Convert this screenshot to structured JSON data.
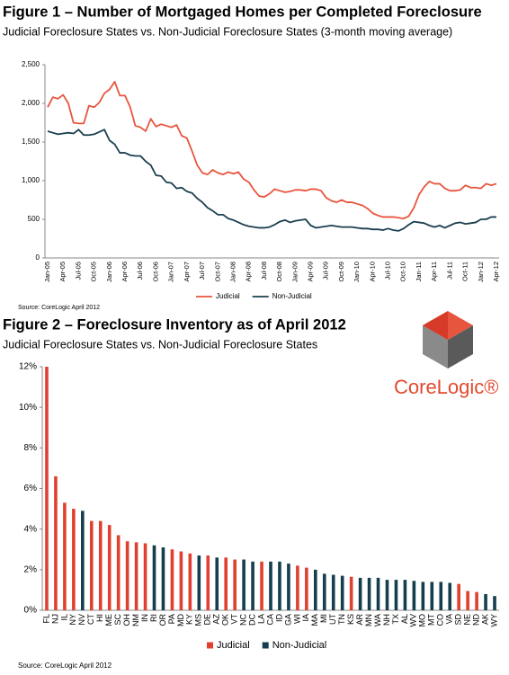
{
  "brand": "CoreLogic®",
  "chart_data": [
    {
      "type": "line",
      "title": "Figure 1 – Number of Mortgaged Homes per Completed Foreclosure",
      "subtitle": "Judicial Foreclosure States vs. Non-Judicial Foreclosure States (3-month moving average)",
      "source": "Source: CoreLogic April 2012",
      "categories": [
        "Jan-05",
        null,
        null,
        "Apr-05",
        null,
        null,
        "Jul-05",
        null,
        null,
        "Oct-05",
        null,
        null,
        "Jan-06",
        null,
        null,
        "Apr-06",
        null,
        null,
        "Jul-06",
        null,
        null,
        "Oct-06",
        null,
        null,
        "Jan-07",
        null,
        null,
        "Apr-07",
        null,
        null,
        "Jul-07",
        null,
        null,
        "Oct-07",
        null,
        null,
        "Jan-08",
        null,
        null,
        "Apr-08",
        null,
        null,
        "Jul-08",
        null,
        null,
        "Oct-08",
        null,
        null,
        "Jan-09",
        null,
        null,
        "Apr-09",
        null,
        null,
        "Jul-09",
        null,
        null,
        "Oct-09",
        null,
        null,
        "Jan-10",
        null,
        null,
        "Apr-10",
        null,
        null,
        "Jul-10",
        null,
        null,
        "Oct-10",
        null,
        null,
        "Jan-11",
        null,
        null,
        "Apr-11",
        null,
        null,
        "Jul-11",
        null,
        null,
        "Oct-11",
        null,
        null,
        "Jan-12",
        null,
        null,
        "Apr-12"
      ],
      "series": [
        {
          "name": "Judicial",
          "color": "#e8553e",
          "values": [
            1950,
            2080,
            2060,
            2110,
            2000,
            1750,
            1740,
            1740,
            1970,
            1950,
            2010,
            2130,
            2180,
            2280,
            2100,
            2100,
            1950,
            1710,
            1690,
            1640,
            1800,
            1700,
            1730,
            1710,
            1690,
            1720,
            1580,
            1550,
            1380,
            1200,
            1100,
            1080,
            1140,
            1100,
            1080,
            1110,
            1090,
            1110,
            1020,
            980,
            880,
            800,
            790,
            830,
            890,
            870,
            850,
            860,
            880,
            880,
            870,
            890,
            890,
            870,
            780,
            740,
            720,
            750,
            720,
            720,
            700,
            680,
            640,
            580,
            550,
            530,
            530,
            530,
            520,
            510,
            540,
            650,
            820,
            920,
            990,
            960,
            960,
            900,
            870,
            870,
            880,
            940,
            910,
            910,
            900,
            960,
            940,
            960
          ]
        },
        {
          "name": "Non-Judicial",
          "color": "#1b3f4f",
          "values": [
            1640,
            1620,
            1600,
            1610,
            1620,
            1610,
            1660,
            1590,
            1590,
            1600,
            1630,
            1660,
            1520,
            1470,
            1360,
            1360,
            1330,
            1320,
            1320,
            1250,
            1200,
            1070,
            1060,
            980,
            970,
            900,
            910,
            860,
            840,
            770,
            720,
            650,
            610,
            560,
            560,
            510,
            490,
            460,
            430,
            410,
            400,
            390,
            390,
            400,
            430,
            470,
            490,
            460,
            480,
            490,
            500,
            420,
            390,
            400,
            410,
            420,
            410,
            400,
            400,
            400,
            390,
            380,
            380,
            370,
            370,
            360,
            380,
            360,
            350,
            380,
            430,
            470,
            460,
            450,
            420,
            400,
            420,
            390,
            420,
            450,
            460,
            440,
            450,
            460,
            500,
            500,
            530,
            530
          ]
        }
      ],
      "ylim": [
        0,
        2500
      ],
      "yticks": [
        0,
        500,
        {
          "value": 1000,
          "label": "1,000"
        },
        {
          "value": 1500,
          "label": "1,500"
        },
        {
          "value": 2000,
          "label": "2,000"
        },
        {
          "value": 2500,
          "label": "2,500"
        }
      ],
      "grid": false
    },
    {
      "type": "bar",
      "title": "Figure 2 – Foreclosure Inventory as of April 2012",
      "subtitle": "Judicial Foreclosure States vs. Non-Judicial Foreclosure States",
      "source": "Source: CoreLogic April 2012",
      "categories": [
        "FL",
        "NJ",
        "IL",
        "NY",
        "NV",
        "CT",
        "HI",
        "ME",
        "SC",
        "OH",
        "NM",
        "IN",
        "RI",
        "OR",
        "PA",
        "MD",
        "KY",
        "MS",
        "DE",
        "AZ",
        "OK",
        "VT",
        "NC",
        "DC",
        "LA",
        "CA",
        "ID",
        "GA",
        "WI",
        "IA",
        "MA",
        "MI",
        "UT",
        "TN",
        "KS",
        "AR",
        "MN",
        "WA",
        "NH",
        "TX",
        "AL",
        "WV",
        "MO",
        "MT",
        "CO",
        "VA",
        "SD",
        "NE",
        "ND",
        "AK",
        "WY"
      ],
      "series": [
        {
          "name": "Judicial",
          "color": "#e0402f",
          "values": [
            12.0,
            6.6,
            5.3,
            5.0,
            null,
            4.4,
            4.4,
            4.2,
            3.7,
            3.4,
            3.35,
            3.3,
            null,
            null,
            3.0,
            2.9,
            2.8,
            null,
            2.7,
            null,
            2.6,
            2.5,
            null,
            null,
            2.4,
            null,
            null,
            null,
            2.2,
            2.1,
            null,
            null,
            null,
            null,
            1.65,
            null,
            null,
            null,
            null,
            null,
            null,
            null,
            null,
            null,
            null,
            null,
            1.3,
            0.95,
            0.9,
            null,
            null
          ]
        },
        {
          "name": "Non-Judicial",
          "color": "#153e4e",
          "values": [
            null,
            null,
            null,
            null,
            4.9,
            null,
            null,
            null,
            null,
            null,
            null,
            null,
            3.2,
            3.1,
            null,
            null,
            null,
            2.7,
            null,
            2.6,
            null,
            null,
            2.5,
            2.4,
            null,
            2.4,
            2.4,
            2.3,
            null,
            null,
            2.0,
            1.8,
            1.75,
            1.7,
            null,
            1.6,
            1.6,
            1.6,
            1.5,
            1.5,
            1.5,
            1.45,
            1.4,
            1.4,
            1.4,
            1.35,
            null,
            null,
            null,
            0.8,
            0.7
          ]
        }
      ],
      "ylim": [
        0,
        12
      ],
      "yticks": [
        {
          "value": 0,
          "label": "0%"
        },
        {
          "value": 2,
          "label": "2%"
        },
        {
          "value": 4,
          "label": "4%"
        },
        {
          "value": 6,
          "label": "6%"
        },
        {
          "value": 8,
          "label": "8%"
        },
        {
          "value": 10,
          "label": "10%"
        },
        {
          "value": 12,
          "label": "12%"
        }
      ],
      "grid": false
    }
  ]
}
